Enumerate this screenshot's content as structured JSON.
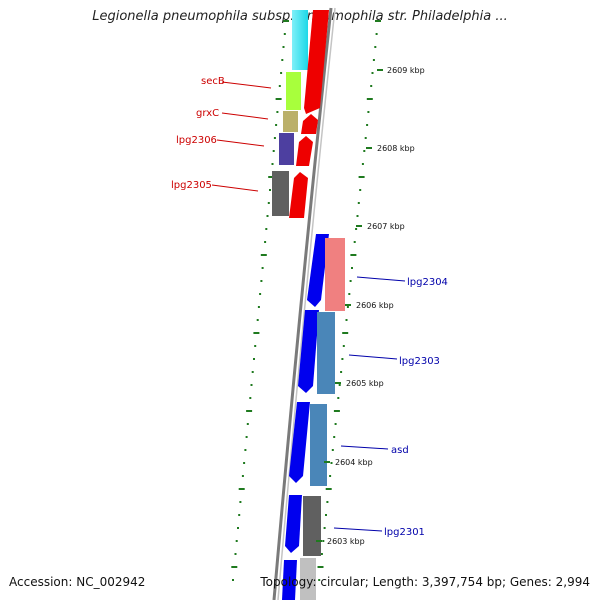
{
  "header": {
    "title": "Legionella pneumophila subsp. pneumophila str. Philadelphia ..."
  },
  "footer": {
    "accession": "Accession: NC_002942",
    "stats": "Topology: circular; Length: 3,397,754 bp; Genes: 2,994"
  },
  "colors": {
    "backbone": "#888888",
    "tick": "#1f7a1f",
    "label_reverse": "#cc0000",
    "label_forward": "#0000aa",
    "forward_arrow": "#0000ee",
    "reverse_arrow": "#ee0000"
  },
  "scale": {
    "ticks": [
      {
        "label": "2609 kbp"
      },
      {
        "label": "2608 kbp"
      },
      {
        "label": "2607 kbp"
      },
      {
        "label": "2606 kbp"
      },
      {
        "label": "2605 kbp"
      },
      {
        "label": "2604 kbp"
      },
      {
        "label": "2603 kbp"
      }
    ]
  },
  "genes": [
    {
      "name": "secB",
      "strand": "reverse",
      "cog_color": "#66d966"
    },
    {
      "name": "grxC",
      "strand": "reverse",
      "cog_color": "#bbb06a"
    },
    {
      "name": "lpg2306",
      "strand": "reverse",
      "cog_color": "#4d3fa0"
    },
    {
      "name": "lpg2305",
      "strand": "reverse",
      "cog_color": "#606060"
    },
    {
      "name": "lpg2304",
      "strand": "forward",
      "cog_color": "#f08080"
    },
    {
      "name": "lpg2303",
      "strand": "forward",
      "cog_color": "#4a86b8"
    },
    {
      "name": "asd",
      "strand": "forward",
      "cog_color": "#4a86b8"
    },
    {
      "name": "lpg2301",
      "strand": "forward",
      "cog_color": "#606060"
    }
  ]
}
